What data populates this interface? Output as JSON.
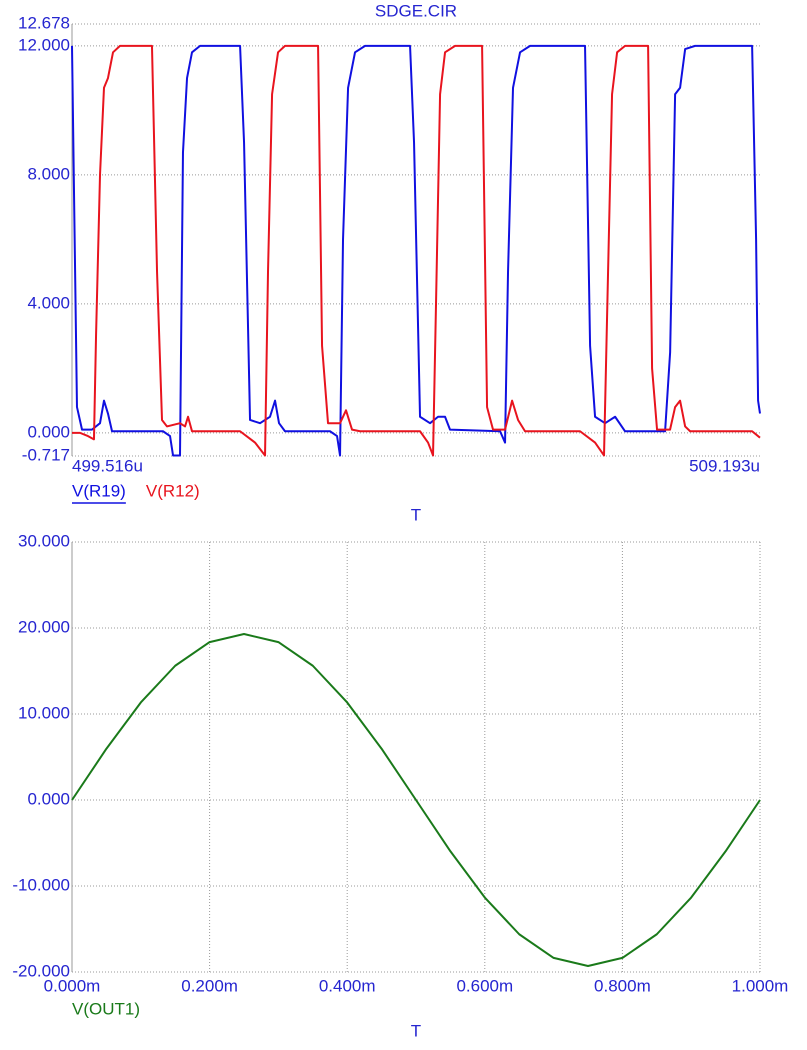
{
  "chart_data": [
    {
      "type": "line",
      "title": "SDGE.CIR",
      "xlabel": "T",
      "xlim": [
        499.516,
        509.193
      ],
      "xticks": [
        {
          "value": 499.516,
          "label": "499.516u"
        },
        {
          "value": 509.193,
          "label": "509.193u"
        }
      ],
      "ylim": [
        -0.717,
        12.678
      ],
      "yticks": [
        {
          "value": 12.678,
          "label": "12.678"
        },
        {
          "value": 12,
          "label": "12.000"
        },
        {
          "value": 8,
          "label": "8.000"
        },
        {
          "value": 4,
          "label": "4.000"
        },
        {
          "value": 0,
          "label": "0.000"
        },
        {
          "value": -0.717,
          "label": "-0.717"
        }
      ],
      "grid": true,
      "series": [
        {
          "name": "V(R19)",
          "color": "#1010e0",
          "x": [
            499.516,
            499.544,
            499.586,
            499.657,
            499.797,
            499.91,
            499.966,
            500.022,
            500.079,
            500.796,
            500.895,
            500.937,
            501.035,
            501.077,
            501.134,
            501.204,
            501.317,
            501.88,
            501.936,
            502.02,
            502.161,
            502.301,
            502.372,
            502.428,
            502.512,
            503.145,
            503.244,
            503.286,
            503.328,
            503.399,
            503.497,
            503.638,
            504.271,
            504.327,
            504.411,
            504.552,
            504.665,
            504.763,
            504.833,
            505.537,
            505.607,
            505.649,
            505.719,
            505.818,
            505.959,
            506.732,
            506.803,
            506.873,
            507.014,
            507.155,
            507.295,
            507.858,
            507.929,
            507.999,
            508.069,
            508.14,
            508.28,
            509.082,
            509.138,
            509.166,
            509.193
          ],
          "values": [
            12,
            7.5,
            0.8,
            0.1,
            0.1,
            0.3,
            1.0,
            0.6,
            0.05,
            0.05,
            -0.1,
            -0.7,
            -0.7,
            8.7,
            11,
            11.8,
            12,
            12,
            9,
            0.4,
            0.3,
            0.5,
            1.0,
            0.3,
            0.05,
            0.05,
            -0.1,
            -0.7,
            6,
            10.7,
            11.8,
            12,
            12,
            9,
            0.5,
            0.3,
            0.5,
            0.5,
            0.1,
            0.05,
            -0.3,
            5,
            10.7,
            11.8,
            12,
            12,
            2.7,
            0.5,
            0.3,
            0.5,
            0.05,
            0.05,
            2.5,
            10.5,
            10.7,
            11.9,
            12,
            12,
            6,
            1,
            0.6
          ]
        },
        {
          "name": "V(R12)",
          "color": "#e8141e",
          "x": [
            499.516,
            499.629,
            499.741,
            499.825,
            499.854,
            499.91,
            499.966,
            500.022,
            500.093,
            500.191,
            500.641,
            500.712,
            500.782,
            500.852,
            501.035,
            501.106,
            501.148,
            501.204,
            501.88,
            502.09,
            502.231,
            502.273,
            502.33,
            502.414,
            502.512,
            502.977,
            503.033,
            503.117,
            503.286,
            503.37,
            503.455,
            503.567,
            504.411,
            504.524,
            504.594,
            504.636,
            504.693,
            504.763,
            504.904,
            505.284,
            505.354,
            505.438,
            505.607,
            505.706,
            505.79,
            505.888,
            506.662,
            506.873,
            506.999,
            507.056,
            507.112,
            507.183,
            507.295,
            507.619,
            507.675,
            507.745,
            507.928,
            507.999,
            508.069,
            508.14,
            508.21,
            509.082,
            509.193
          ],
          "values": [
            0,
            0,
            -0.1,
            -0.2,
            3,
            8,
            10.7,
            11,
            11.8,
            12,
            12,
            5,
            0.4,
            0.2,
            0.3,
            0.2,
            0.5,
            0.05,
            0.05,
            -0.3,
            -0.7,
            5,
            10.5,
            11.8,
            12,
            12,
            2.7,
            0.3,
            0.3,
            0.7,
            0.1,
            0.05,
            0.05,
            -0.3,
            -0.7,
            4,
            10.5,
            11.8,
            12,
            12,
            0.8,
            0.1,
            0.1,
            1.0,
            0.4,
            0.05,
            0.05,
            -0.3,
            -0.7,
            5,
            10.5,
            11.8,
            12,
            12,
            2,
            0.1,
            0.1,
            0.8,
            1.0,
            0.2,
            0.05,
            0.05,
            -0.15
          ]
        }
      ]
    },
    {
      "type": "line",
      "xlabel": "T",
      "xlim": [
        0,
        1
      ],
      "xticks": [
        {
          "value": 0,
          "label": "0.000m"
        },
        {
          "value": 0.2,
          "label": "0.200m"
        },
        {
          "value": 0.4,
          "label": "0.400m"
        },
        {
          "value": 0.6,
          "label": "0.600m"
        },
        {
          "value": 0.8,
          "label": "0.800m"
        },
        {
          "value": 1,
          "label": "1.000m"
        }
      ],
      "ylim": [
        -20,
        30
      ],
      "yticks": [
        {
          "value": 30,
          "label": "30.000"
        },
        {
          "value": 20,
          "label": "20.000"
        },
        {
          "value": 10,
          "label": "10.000"
        },
        {
          "value": 0,
          "label": "0.000"
        },
        {
          "value": -10,
          "label": "-10.000"
        },
        {
          "value": -20,
          "label": "-20.000"
        }
      ],
      "grid": true,
      "series": [
        {
          "name": "V(OUT1)",
          "color": "#1a7a1a",
          "x": [
            0,
            0.05,
            0.1,
            0.15,
            0.2,
            0.25,
            0.3,
            0.35,
            0.4,
            0.45,
            0.5,
            0.55,
            0.6,
            0.65,
            0.7,
            0.75,
            0.8,
            0.85,
            0.9,
            0.95,
            1
          ],
          "values": [
            0,
            5.96,
            11.34,
            15.61,
            18.36,
            19.3,
            18.36,
            15.61,
            11.34,
            5.96,
            0,
            -5.96,
            -11.34,
            -15.61,
            -18.36,
            -19.3,
            -18.36,
            -15.61,
            -11.34,
            -5.96,
            0
          ]
        }
      ]
    }
  ]
}
